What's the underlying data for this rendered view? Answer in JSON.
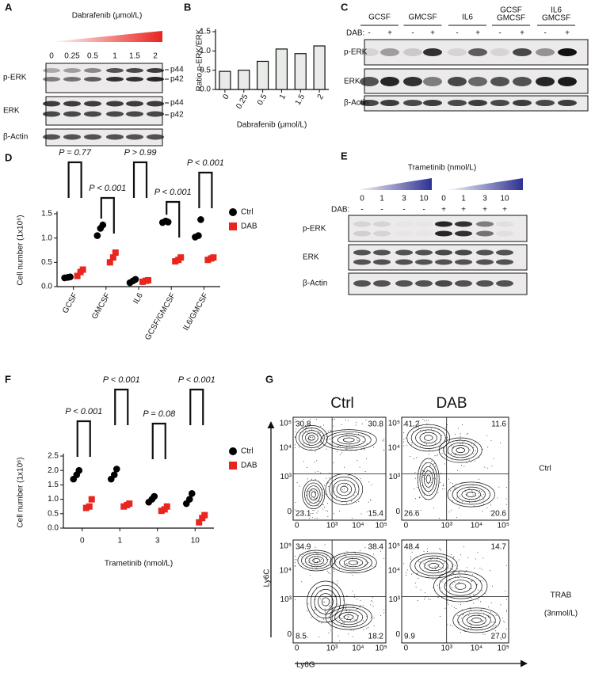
{
  "panel_labels": [
    "A",
    "B",
    "C",
    "D",
    "E",
    "F",
    "G"
  ],
  "blot_A": {
    "title": "Dabrafenib (μmol/L)",
    "doses": [
      "0",
      "0.25",
      "0.5",
      "1",
      "1.5",
      "2"
    ],
    "rows": [
      "p-ERK",
      "ERK",
      "β-Actin"
    ],
    "markers": [
      "p44",
      "p42",
      "p44",
      "p42"
    ]
  },
  "blot_C": {
    "groups": [
      [
        "GCSF"
      ],
      [
        "GMCSF"
      ],
      [
        "IL6"
      ],
      [
        "GCSF",
        "GMCSF"
      ],
      [
        "IL6",
        "GMCSF"
      ]
    ],
    "dab_label": "DAB:",
    "dab": [
      "-",
      "+",
      "-",
      "+",
      "-",
      "+",
      "-",
      "+",
      "-",
      "+"
    ],
    "rows": [
      "p-ERK",
      "ERK",
      "β-Actin"
    ]
  },
  "blot_E": {
    "title": "Trametinib (nmol/L)",
    "doses": [
      "0",
      "1",
      "3",
      "10",
      "0",
      "1",
      "3",
      "10"
    ],
    "dab_label": "DAB:",
    "dab": [
      "-",
      "-",
      "-",
      "-",
      "+",
      "+",
      "+",
      "+"
    ],
    "rows": [
      "p-ERK",
      "ERK",
      "β-Actin"
    ]
  },
  "chart_data": [
    {
      "type": "bar",
      "x_label": "Dabrafenib (μmol/L)",
      "y_label": "Ratio p-ERK/ERK",
      "categories": [
        "0",
        "0.25",
        "0.5",
        "1",
        "1.5",
        "2"
      ],
      "values": [
        0.47,
        0.5,
        0.73,
        1.05,
        0.93,
        1.13
      ],
      "color": "#e8ebe8",
      "ylim": [
        0,
        1.5
      ],
      "yticks": [
        {
          "value": 0,
          "label": "0.0"
        },
        0.5,
        {
          "value": 1,
          "label": "1.0"
        },
        1.5
      ]
    },
    {
      "type": "dot",
      "y_label": "Cell number (1x10⁶)",
      "categories": [
        "GCSF",
        "GMCSF",
        "IL6",
        "GCSF/GMCSF",
        "IL6/GMCSF"
      ],
      "series": [
        {
          "name": "Ctrl",
          "color": "#000000",
          "marker": "circle",
          "values": [
            [
              0.18,
              0.19,
              0.2
            ],
            [
              1.05,
              1.2,
              1.27
            ],
            [
              0.08,
              0.12,
              0.15
            ],
            [
              1.32,
              1.35,
              1.33
            ],
            [
              1.02,
              1.05,
              1.38
            ]
          ]
        },
        {
          "name": "DAB",
          "color": "#e8251f",
          "marker": "square",
          "values": [
            [
              0.22,
              0.3,
              0.35
            ],
            [
              0.5,
              0.6,
              0.7
            ],
            [
              0.1,
              0.12,
              0.13
            ],
            [
              0.52,
              0.55,
              0.6
            ],
            [
              0.55,
              0.58,
              0.6
            ]
          ]
        }
      ],
      "annotations": [
        "P = 0.77",
        "P < 0.001",
        "P > 0.99",
        "P < 0.001",
        "P < 0.001"
      ],
      "ylim": [
        0,
        1.5
      ],
      "yticks": [
        {
          "value": 0,
          "label": "0.0"
        },
        0.5,
        {
          "value": 1,
          "label": "1.0"
        },
        1.5
      ],
      "legend": "right"
    },
    {
      "type": "dot",
      "x_label": "Trametinib (nmol/L)",
      "y_label": "Cell number (1x10⁶)",
      "categories": [
        "0",
        "1",
        "3",
        "10"
      ],
      "series": [
        {
          "name": "Ctrl",
          "color": "#000000",
          "marker": "circle",
          "values": [
            [
              1.7,
              1.85,
              2.0
            ],
            [
              1.7,
              1.85,
              2.05
            ],
            [
              0.9,
              1.0,
              1.1
            ],
            [
              0.85,
              1.0,
              1.2
            ]
          ]
        },
        {
          "name": "DAB",
          "color": "#e8251f",
          "marker": "square",
          "values": [
            [
              0.7,
              0.75,
              1.0
            ],
            [
              0.75,
              0.8,
              0.85
            ],
            [
              0.6,
              0.65,
              0.75
            ],
            [
              0.2,
              0.35,
              0.45
            ]
          ]
        }
      ],
      "annotations": [
        "P < 0.001",
        "P < 0.001",
        "P = 0.08",
        "P < 0.001"
      ],
      "ylim": [
        0,
        2.5
      ],
      "yticks": [
        {
          "value": 0,
          "label": "0.0"
        },
        0.5,
        {
          "value": 1,
          "label": "1.0"
        },
        1.5,
        {
          "value": 2,
          "label": "2.0"
        },
        2.5
      ],
      "legend": "right"
    }
  ],
  "flow": {
    "columns": [
      "Ctrl",
      "DAB"
    ],
    "rows": [
      [
        "Ctrl"
      ],
      [
        "TRAB",
        "(3nmol/L)"
      ]
    ],
    "y_axis": "Ly6C",
    "x_axis": "Ly6G",
    "y_ticks": [
      "10⁵",
      "10⁴",
      "10³",
      "0"
    ],
    "x_ticks": [
      "0",
      "10³",
      "10⁴",
      "10⁵"
    ],
    "plots": [
      [
        "30.8",
        "30.8",
        "23.1",
        "15.4"
      ],
      [
        "41.2",
        "11.6",
        "26.6",
        "20.6"
      ],
      [
        "34.9",
        "38.4",
        "8.5",
        "18.2"
      ],
      [
        "48.4",
        "14.7",
        "9.9",
        "27.0"
      ]
    ]
  }
}
